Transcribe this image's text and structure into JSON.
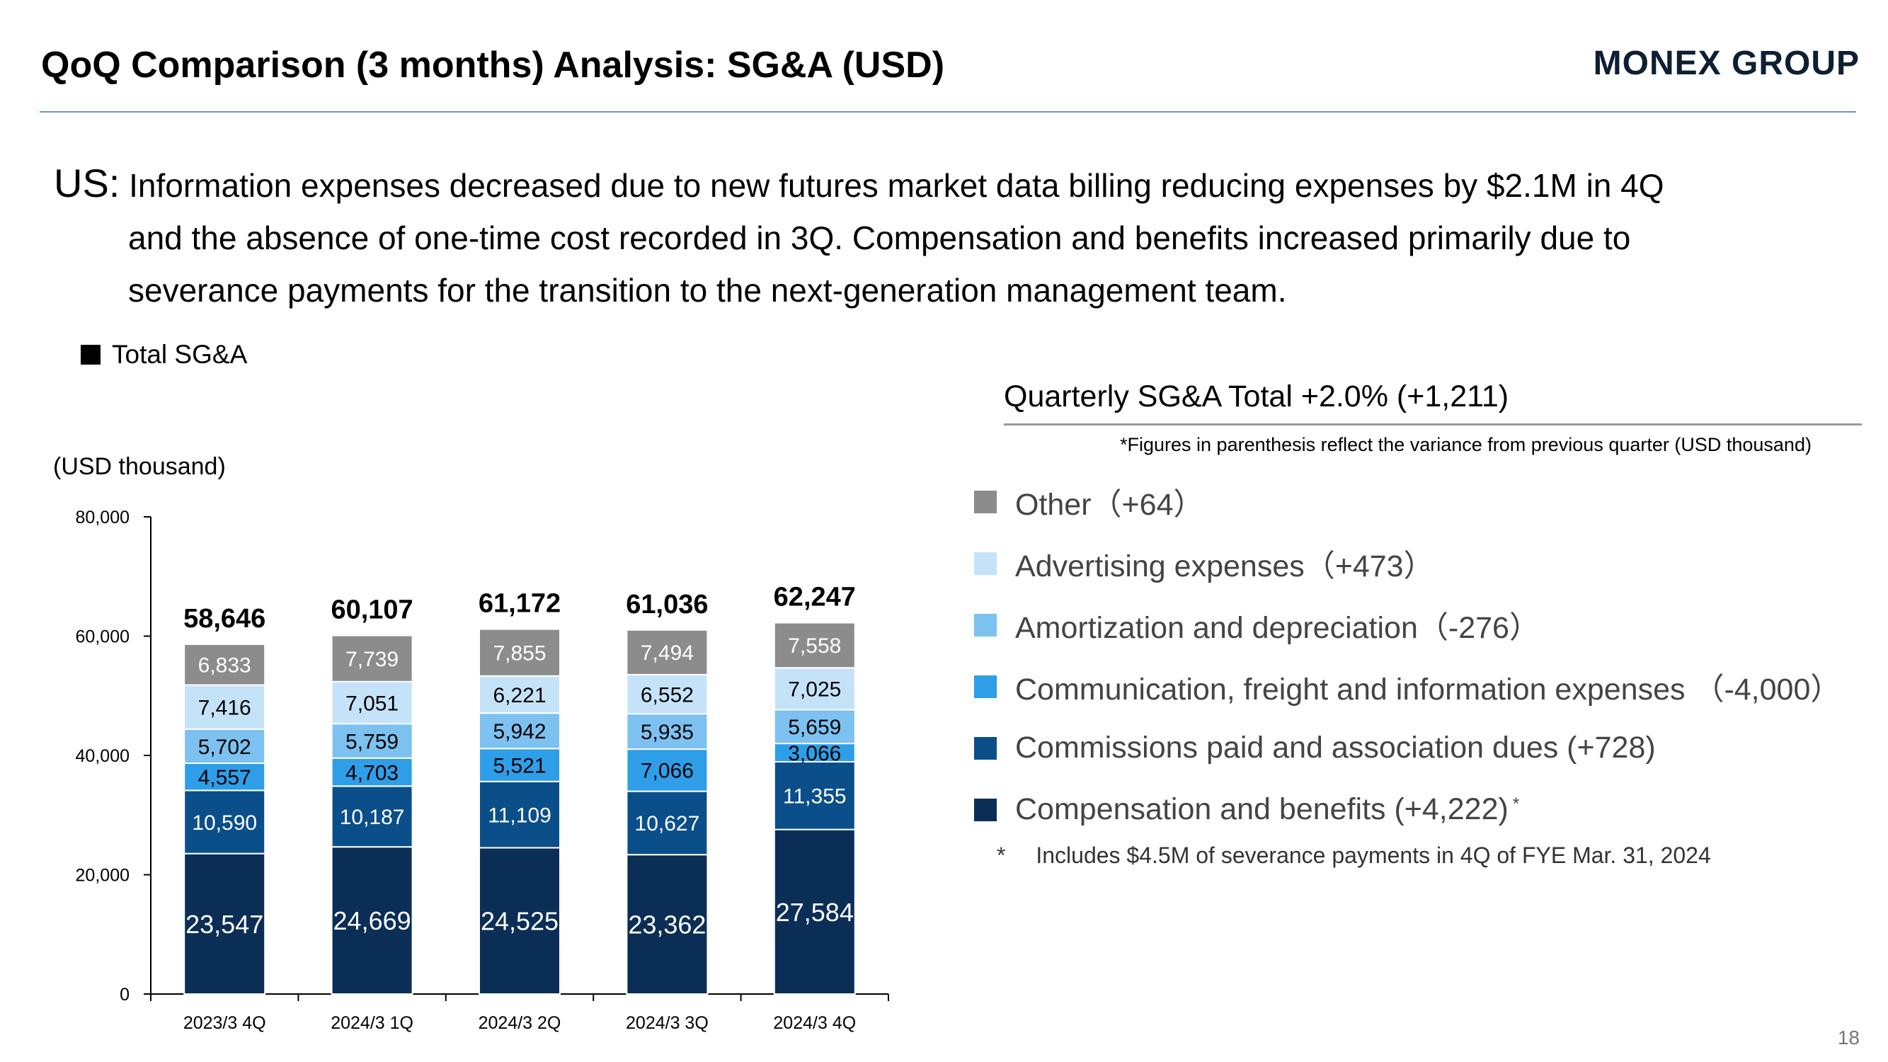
{
  "header": {
    "title": "QoQ Comparison (3 months) Analysis: SG&A (USD)",
    "logo_text": "MONEX GROUP"
  },
  "summary": {
    "lead": "US:",
    "line1": "Information expenses decreased due to new futures market data billing reducing expenses by $2.1M in 4Q",
    "line2": "and the absence of one-time cost recorded in 3Q. Compensation and benefits increased primarily due to",
    "line3": "severance payments for the transition to the next-generation management team."
  },
  "total_legend_label": "Total SG&A",
  "unit_label": "(USD thousand)",
  "legend_panel": {
    "title": "Quarterly SG&A Total +2.0% (+1,211)",
    "note": "*Figures in parenthesis reflect the variance from previous quarter (USD thousand)",
    "items": [
      {
        "label": "Other（+64）",
        "color": "#8c8c8c"
      },
      {
        "label": "Advertising expenses（+473）",
        "color": "#c5e3f8"
      },
      {
        "label": "Amortization and depreciation（-276）",
        "color": "#7cc1f0"
      },
      {
        "label": "Communication, freight and information expenses （-4,000）",
        "color": "#2f9ee8"
      },
      {
        "label": "Commissions paid and association dues (+728)",
        "color": "#0b4f8a"
      },
      {
        "label": "Compensation and benefits (+4,222)",
        "color": "#0b2e56",
        "sup": "*"
      }
    ],
    "footnote_star": "*",
    "footnote_text": "Includes $4.5M of severance payments in 4Q of FYE Mar. 31, 2024"
  },
  "page_number": "18",
  "chart_data": {
    "type": "bar",
    "stacked": true,
    "categories": [
      "2023/3 4Q",
      "2024/3 1Q",
      "2024/3 2Q",
      "2024/3 3Q",
      "2024/3 4Q"
    ],
    "series": [
      {
        "name": "Compensation and benefits",
        "values": [
          23547,
          24669,
          24525,
          23362,
          27584
        ],
        "color": "#0b2e56",
        "label_color": "#ffffff"
      },
      {
        "name": "Commissions paid and association dues",
        "values": [
          10590,
          10187,
          11109,
          10627,
          11355
        ],
        "color": "#0b4f8a",
        "label_color": "#ffffff"
      },
      {
        "name": "Communication, freight and information expenses",
        "values": [
          4557,
          4703,
          5521,
          7066,
          3066
        ],
        "color": "#2f9ee8",
        "label_color": "#000000"
      },
      {
        "name": "Amortization and depreciation",
        "values": [
          5702,
          5759,
          5942,
          5935,
          5659
        ],
        "color": "#7cc1f0",
        "label_color": "#000000"
      },
      {
        "name": "Advertising expenses",
        "values": [
          7416,
          7051,
          6221,
          6552,
          7025
        ],
        "color": "#c5e3f8",
        "label_color": "#000000"
      },
      {
        "name": "Other",
        "values": [
          6833,
          7739,
          7855,
          7494,
          7558
        ],
        "color": "#8c8c8c",
        "label_color": "#ffffff"
      }
    ],
    "totals": [
      58646,
      60107,
      61172,
      61036,
      62247
    ],
    "value_labels": [
      [
        "23,547",
        "10,590",
        "4,557",
        "5,702",
        "7,416",
        "6,833"
      ],
      [
        "24,669",
        "10,187",
        "4,703",
        "5,759",
        "7,051",
        "7,739"
      ],
      [
        "24,525",
        "11,109",
        "5,521",
        "5,942",
        "6,221",
        "7,855"
      ],
      [
        "23,362",
        "10,627",
        "7,066",
        "5,935",
        "6,552",
        "7,494"
      ],
      [
        "27,584",
        "11,355",
        "3,066",
        "5,659",
        "7,025",
        "7,558"
      ]
    ],
    "total_labels": [
      "58,646",
      "60,107",
      "61,172",
      "61,036",
      "62,247"
    ],
    "ylim": [
      0,
      80000
    ],
    "yticks": [
      0,
      20000,
      40000,
      60000,
      80000
    ],
    "ytick_labels": [
      "0",
      "20,000",
      "40,000",
      "60,000",
      "80,000"
    ],
    "grid": false,
    "xlabel": "",
    "ylabel": "(USD thousand)"
  }
}
